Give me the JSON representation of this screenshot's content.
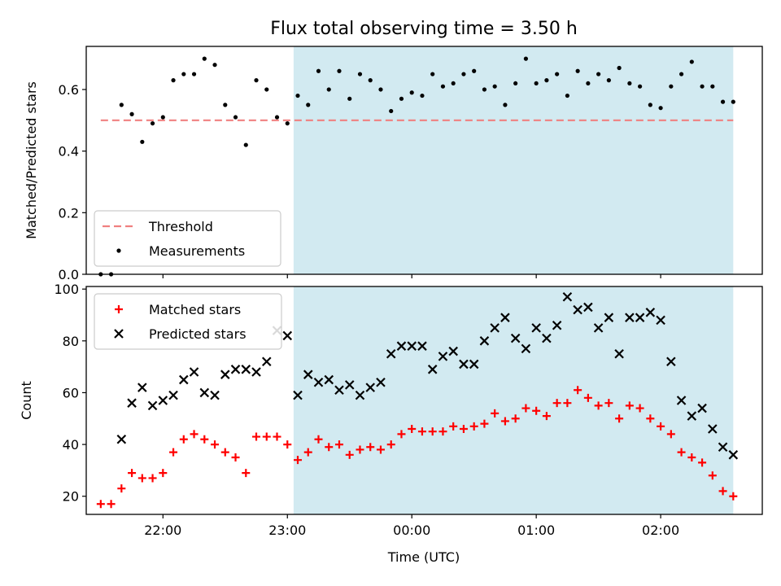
{
  "chart_data": [
    {
      "type": "scatter",
      "title": "Flux total observing time = 3.50 h",
      "ylabel": "Matched/Predicted stars",
      "xlabel": "",
      "ylim": [
        0,
        0.74
      ],
      "yticks": [
        "0.0",
        "0.2",
        "0.4",
        "0.6"
      ],
      "ytick_values": [
        0,
        0.2,
        0.4,
        0.6
      ],
      "shaded_region": {
        "x_start": "23:03",
        "x_end": "02:35",
        "color": "#add8e6"
      },
      "legend_position": "lower-left",
      "threshold": {
        "name": "Threshold",
        "value": 0.5,
        "x_start": "21:30",
        "x_end": "02:35",
        "color": "#f08080"
      },
      "series": [
        {
          "name": "Measurements",
          "color": "#000000",
          "x": [
            "21:30",
            "21:35",
            "21:40",
            "21:45",
            "21:50",
            "21:55",
            "22:00",
            "22:05",
            "22:10",
            "22:15",
            "22:20",
            "22:25",
            "22:30",
            "22:35",
            "22:40",
            "22:45",
            "22:50",
            "22:55",
            "23:00",
            "23:05",
            "23:10",
            "23:15",
            "23:20",
            "23:25",
            "23:30",
            "23:35",
            "23:40",
            "23:45",
            "23:50",
            "23:55",
            "00:00",
            "00:05",
            "00:10",
            "00:15",
            "00:20",
            "00:25",
            "00:30",
            "00:35",
            "00:40",
            "00:45",
            "00:50",
            "00:55",
            "01:00",
            "01:05",
            "01:10",
            "01:15",
            "01:20",
            "01:25",
            "01:30",
            "01:35",
            "01:40",
            "01:45",
            "01:50",
            "01:55",
            "02:00",
            "02:05",
            "02:10",
            "02:15",
            "02:20",
            "02:25",
            "02:30",
            "02:35"
          ],
          "y": [
            0.0,
            0.0,
            0.55,
            0.52,
            0.43,
            0.49,
            0.51,
            0.63,
            0.65,
            0.65,
            0.7,
            0.68,
            0.55,
            0.51,
            0.42,
            0.63,
            0.6,
            0.51,
            0.49,
            0.58,
            0.55,
            0.66,
            0.6,
            0.66,
            0.57,
            0.65,
            0.63,
            0.6,
            0.53,
            0.57,
            0.59,
            0.58,
            0.65,
            0.61,
            0.62,
            0.65,
            0.66,
            0.6,
            0.61,
            0.55,
            0.62,
            0.7,
            0.62,
            0.63,
            0.65,
            0.58,
            0.66,
            0.62,
            0.65,
            0.63,
            0.67,
            0.62,
            0.61,
            0.55,
            0.54,
            0.61,
            0.65,
            0.69,
            0.61,
            0.61,
            0.56,
            0.56
          ]
        }
      ]
    },
    {
      "type": "scatter",
      "ylabel": "Count",
      "xlabel": "Time (UTC)",
      "ylim": [
        13,
        101
      ],
      "yticks": [
        "20",
        "40",
        "60",
        "80",
        "100"
      ],
      "ytick_values": [
        20,
        40,
        60,
        80,
        100
      ],
      "xticks": [
        "22:00",
        "23:00",
        "00:00",
        "01:00",
        "02:00"
      ],
      "shaded_region": {
        "x_start": "23:03",
        "x_end": "02:35",
        "color": "#add8e6"
      },
      "legend_position": "upper-left",
      "series": [
        {
          "name": "Matched stars",
          "marker": "+",
          "color": "#ff0000",
          "x": [
            "21:30",
            "21:35",
            "21:40",
            "21:45",
            "21:50",
            "21:55",
            "22:00",
            "22:05",
            "22:10",
            "22:15",
            "22:20",
            "22:25",
            "22:30",
            "22:35",
            "22:40",
            "22:45",
            "22:50",
            "22:55",
            "23:00",
            "23:05",
            "23:10",
            "23:15",
            "23:20",
            "23:25",
            "23:30",
            "23:35",
            "23:40",
            "23:45",
            "23:50",
            "23:55",
            "00:00",
            "00:05",
            "00:10",
            "00:15",
            "00:20",
            "00:25",
            "00:30",
            "00:35",
            "00:40",
            "00:45",
            "00:50",
            "00:55",
            "01:00",
            "01:05",
            "01:10",
            "01:15",
            "01:20",
            "01:25",
            "01:30",
            "01:35",
            "01:40",
            "01:45",
            "01:50",
            "01:55",
            "02:00",
            "02:05",
            "02:10",
            "02:15",
            "02:20",
            "02:25",
            "02:30",
            "02:35"
          ],
          "y": [
            17,
            17,
            23,
            29,
            27,
            27,
            29,
            37,
            42,
            44,
            42,
            40,
            37,
            35,
            29,
            43,
            43,
            43,
            40,
            34,
            37,
            42,
            39,
            40,
            36,
            38,
            39,
            38,
            40,
            44,
            46,
            45,
            45,
            45,
            47,
            46,
            47,
            48,
            52,
            49,
            50,
            54,
            53,
            51,
            56,
            56,
            61,
            58,
            55,
            56,
            50,
            55,
            54,
            50,
            47,
            44,
            37,
            35,
            33,
            28,
            22,
            20
          ]
        },
        {
          "name": "Predicted stars",
          "marker": "x",
          "color": "#000000",
          "x": [
            "21:40",
            "21:45",
            "21:50",
            "21:55",
            "22:00",
            "22:05",
            "22:10",
            "22:15",
            "22:20",
            "22:25",
            "22:30",
            "22:35",
            "22:40",
            "22:45",
            "22:50",
            "22:55",
            "23:00",
            "23:05",
            "23:10",
            "23:15",
            "23:20",
            "23:25",
            "23:30",
            "23:35",
            "23:40",
            "23:45",
            "23:50",
            "23:55",
            "00:00",
            "00:05",
            "00:10",
            "00:15",
            "00:20",
            "00:25",
            "00:30",
            "00:35",
            "00:40",
            "00:45",
            "00:50",
            "00:55",
            "01:00",
            "01:05",
            "01:10",
            "01:15",
            "01:20",
            "01:25",
            "01:30",
            "01:35",
            "01:40",
            "01:45",
            "01:50",
            "01:55",
            "02:00",
            "02:05",
            "02:10",
            "02:15",
            "02:20",
            "02:25",
            "02:30",
            "02:35"
          ],
          "y": [
            42,
            56,
            62,
            55,
            57,
            59,
            65,
            68,
            60,
            59,
            67,
            69,
            69,
            68,
            72,
            84,
            82,
            59,
            67,
            64,
            65,
            61,
            63,
            59,
            62,
            64,
            75,
            78,
            78,
            78,
            69,
            74,
            76,
            71,
            71,
            80,
            85,
            89,
            81,
            77,
            85,
            81,
            86,
            97,
            92,
            93,
            85,
            89,
            75,
            89,
            89,
            91,
            88,
            72,
            57,
            51,
            54,
            46,
            39,
            36
          ]
        }
      ]
    }
  ]
}
